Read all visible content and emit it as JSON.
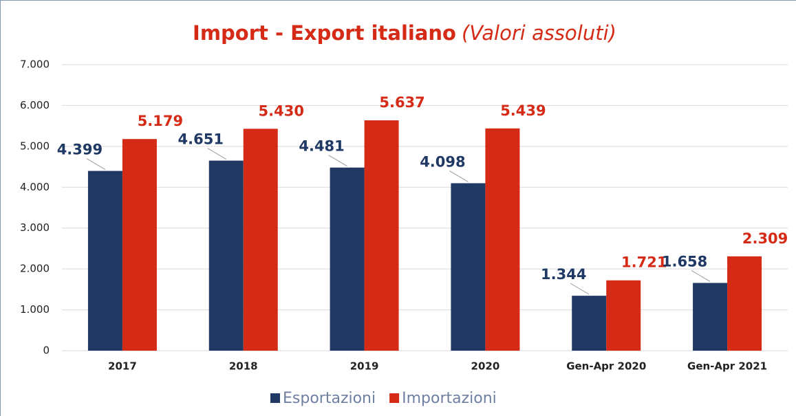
{
  "chart_data": {
    "type": "bar",
    "title": "Import - Export italiano",
    "subtitle": "(Valori assoluti)",
    "categories": [
      "2017",
      "2018",
      "2019",
      "2020",
      "Gen-Apr 2020",
      "Gen-Apr 2021"
    ],
    "series": [
      {
        "name": "Esportazioni",
        "color": "#1f3864",
        "values": [
          4399,
          4651,
          4481,
          4098,
          1344,
          1658
        ],
        "value_labels": [
          "4.399",
          "4.651",
          "4.481",
          "4.098",
          "1.344",
          "1.658"
        ]
      },
      {
        "name": "Importazioni",
        "color": "#d42a16",
        "values": [
          5179,
          5430,
          5637,
          5439,
          1721,
          2309
        ],
        "value_labels": [
          "5.179",
          "5.430",
          "5.637",
          "5.439",
          "1.721",
          "2.309"
        ]
      }
    ],
    "ylim": [
      0,
      7000
    ],
    "yticks": [
      0,
      {
        "value": 1000,
        "label": "1.000"
      },
      {
        "value": 2000,
        "label": "2.000"
      },
      {
        "value": 3000,
        "label": "3.000"
      },
      {
        "value": 4000,
        "label": "4.000"
      },
      {
        "value": 5000,
        "label": "5.000"
      },
      {
        "value": 6000,
        "label": "6.000"
      },
      {
        "value": 7000,
        "label": "7.000"
      }
    ],
    "grid": true,
    "legend": "bottom"
  }
}
